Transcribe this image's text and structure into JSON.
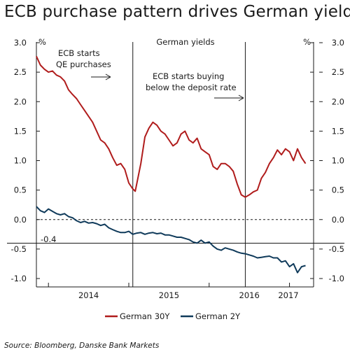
{
  "title": "ECB purchase pattern drives German yields",
  "source": "Source: Bloomberg, Danske Bank Markets",
  "chart_data": {
    "type": "line",
    "title": "German yields",
    "y_unit_left": "%",
    "y_unit_right": "%",
    "ylim": [
      -1.0,
      3.0
    ],
    "y_ticks": [
      "3.0",
      "2.5",
      "2.0",
      "1.5",
      "1.0",
      "0.5",
      "0.0",
      "-0.5",
      "-1.0"
    ],
    "x_range": [
      2013.85,
      2017.3
    ],
    "x_ticks": [
      "2014",
      "2015",
      "2016",
      "2017"
    ],
    "reference_lines": [
      {
        "type": "horizontal",
        "y": 0.0,
        "style": "dashed"
      },
      {
        "type": "horizontal",
        "y": -0.4,
        "label": "-0.4"
      },
      {
        "type": "vertical",
        "x": 2015.05
      },
      {
        "type": "vertical",
        "x": 2016.45
      }
    ],
    "annotations": [
      {
        "text_lines": [
          "ECB starts",
          "QE purchases"
        ]
      },
      {
        "text_lines": [
          "ECB starts buying",
          "below the deposit rate"
        ]
      }
    ],
    "series": [
      {
        "name": "German 30Y",
        "color": "#b01c1c",
        "x": [
          2013.85,
          2013.9,
          2013.95,
          2014.0,
          2014.05,
          2014.1,
          2014.15,
          2014.2,
          2014.25,
          2014.3,
          2014.35,
          2014.4,
          2014.45,
          2014.5,
          2014.55,
          2014.6,
          2014.65,
          2014.7,
          2014.75,
          2014.8,
          2014.85,
          2014.9,
          2014.95,
          2015.0,
          2015.05,
          2015.08,
          2015.12,
          2015.15,
          2015.2,
          2015.25,
          2015.3,
          2015.35,
          2015.4,
          2015.45,
          2015.5,
          2015.55,
          2015.6,
          2015.65,
          2015.7,
          2015.75,
          2015.8,
          2015.85,
          2015.9,
          2015.95,
          2016.0,
          2016.05,
          2016.1,
          2016.15,
          2016.2,
          2016.25,
          2016.3,
          2016.35,
          2016.4,
          2016.45,
          2016.5,
          2016.55,
          2016.6,
          2016.65,
          2016.7,
          2016.75,
          2016.8,
          2016.85,
          2016.9,
          2016.95,
          2017.0,
          2017.05,
          2017.1,
          2017.15,
          2017.2
        ],
        "y": [
          2.77,
          2.62,
          2.55,
          2.5,
          2.52,
          2.45,
          2.42,
          2.35,
          2.2,
          2.12,
          2.05,
          1.95,
          1.85,
          1.75,
          1.65,
          1.5,
          1.35,
          1.3,
          1.2,
          1.05,
          0.92,
          0.95,
          0.85,
          0.62,
          0.52,
          0.48,
          0.75,
          0.95,
          1.4,
          1.55,
          1.65,
          1.6,
          1.5,
          1.45,
          1.35,
          1.25,
          1.3,
          1.45,
          1.5,
          1.35,
          1.3,
          1.38,
          1.2,
          1.15,
          1.1,
          0.9,
          0.85,
          0.95,
          0.95,
          0.9,
          0.82,
          0.6,
          0.42,
          0.38,
          0.42,
          0.47,
          0.5,
          0.7,
          0.8,
          0.95,
          1.05,
          1.18,
          1.1,
          1.2,
          1.15,
          1.0,
          1.2,
          1.05,
          0.95
        ]
      },
      {
        "name": "German 2Y",
        "color": "#0f3a5a",
        "x": [
          2013.85,
          2013.9,
          2013.95,
          2014.0,
          2014.05,
          2014.1,
          2014.15,
          2014.2,
          2014.25,
          2014.3,
          2014.35,
          2014.4,
          2014.45,
          2014.5,
          2014.55,
          2014.6,
          2014.65,
          2014.7,
          2014.75,
          2014.8,
          2014.85,
          2014.9,
          2014.95,
          2015.0,
          2015.05,
          2015.1,
          2015.15,
          2015.2,
          2015.25,
          2015.3,
          2015.35,
          2015.4,
          2015.45,
          2015.5,
          2015.55,
          2015.6,
          2015.65,
          2015.7,
          2015.75,
          2015.8,
          2015.85,
          2015.9,
          2015.95,
          2016.0,
          2016.05,
          2016.1,
          2016.15,
          2016.2,
          2016.25,
          2016.3,
          2016.35,
          2016.4,
          2016.45,
          2016.5,
          2016.55,
          2016.6,
          2016.65,
          2016.7,
          2016.75,
          2016.8,
          2016.85,
          2016.9,
          2016.95,
          2017.0,
          2017.05,
          2017.1,
          2017.15,
          2017.2
        ],
        "y": [
          0.22,
          0.15,
          0.12,
          0.18,
          0.14,
          0.1,
          0.08,
          0.1,
          0.05,
          0.03,
          -0.02,
          -0.05,
          -0.03,
          -0.06,
          -0.05,
          -0.07,
          -0.1,
          -0.08,
          -0.14,
          -0.17,
          -0.2,
          -0.22,
          -0.22,
          -0.2,
          -0.25,
          -0.23,
          -0.22,
          -0.25,
          -0.23,
          -0.22,
          -0.24,
          -0.23,
          -0.26,
          -0.26,
          -0.28,
          -0.3,
          -0.3,
          -0.32,
          -0.34,
          -0.38,
          -0.4,
          -0.35,
          -0.4,
          -0.38,
          -0.45,
          -0.5,
          -0.52,
          -0.48,
          -0.5,
          -0.52,
          -0.55,
          -0.57,
          -0.58,
          -0.6,
          -0.62,
          -0.65,
          -0.64,
          -0.63,
          -0.62,
          -0.65,
          -0.65,
          -0.72,
          -0.7,
          -0.8,
          -0.75,
          -0.9,
          -0.8,
          -0.78
        ]
      }
    ]
  }
}
